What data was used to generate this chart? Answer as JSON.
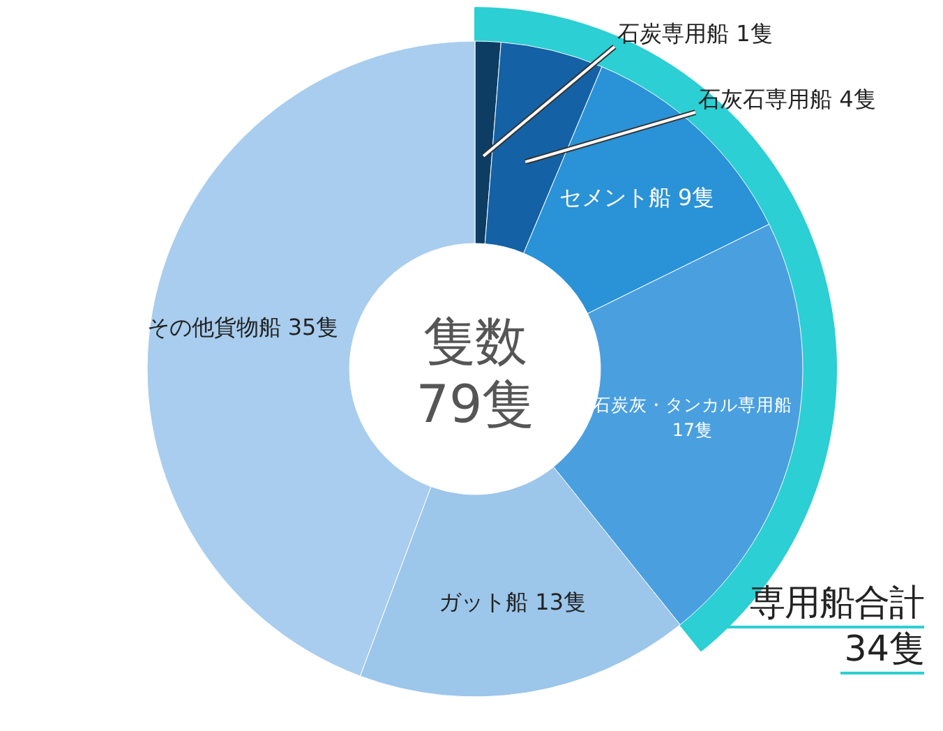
{
  "chart_data": {
    "type": "donut",
    "title": "隻数",
    "subtitle": "79隻",
    "categories": [
      "石炭専用船",
      "石灰石専用船",
      "セメント船",
      "石炭灰・タンカル専用船",
      "ガット船",
      "その他貨物船"
    ],
    "values": [
      1,
      4,
      9,
      17,
      13,
      35
    ],
    "value_labels": [
      "1隻",
      "4隻",
      "9隻",
      "17隻",
      "13隻",
      "35隻"
    ],
    "colors": [
      "#0e3d64",
      "#1462a5",
      "#2a92d6",
      "#4a9fdf",
      "#9cc6ea",
      "#a8cdee"
    ],
    "annotations": [
      "専用船合計\n34隻"
    ]
  }
}
